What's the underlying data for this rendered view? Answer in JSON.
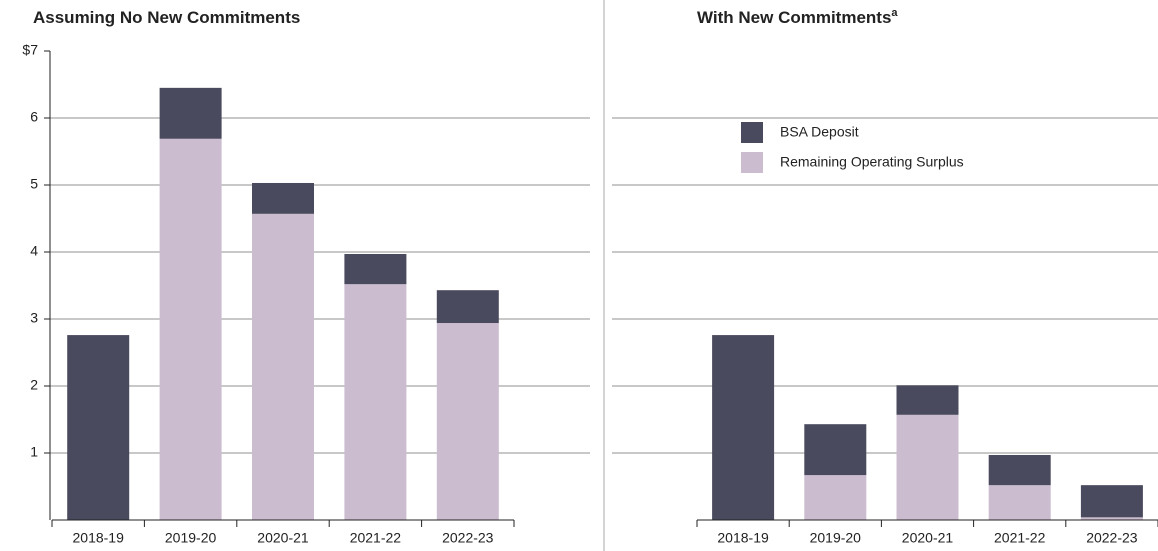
{
  "chart_data": [
    {
      "type": "stacked_bar",
      "title": "Assuming No New Commitments",
      "categories": [
        "2018-19",
        "2019-20",
        "2020-21",
        "2021-22",
        "2022-23"
      ],
      "series": [
        {
          "name": "Remaining Operating Surplus",
          "color": "#cbbccf",
          "values": [
            0,
            5.69,
            4.57,
            3.52,
            2.94
          ]
        },
        {
          "name": "BSA Deposit",
          "color": "#4a4a5e",
          "values": [
            2.76,
            0.76,
            0.46,
            0.45,
            0.49
          ]
        }
      ],
      "ylim": [
        0,
        7
      ],
      "yticks": [
        1,
        2,
        3,
        4,
        5,
        6,
        {
          "value": 7,
          "label": "$7"
        }
      ],
      "grid": true
    },
    {
      "type": "stacked_bar",
      "title": "With New Commitments",
      "title_note": "a",
      "categories": [
        "2018-19",
        "2019-20",
        "2020-21",
        "2021-22",
        "2022-23"
      ],
      "series": [
        {
          "name": "Remaining Operating Surplus",
          "color": "#cbbccf",
          "values": [
            0,
            0.67,
            1.57,
            0.52,
            0.04
          ]
        },
        {
          "name": "BSA Deposit",
          "color": "#4a4a5e",
          "values": [
            2.76,
            0.76,
            0.44,
            0.45,
            0.48
          ]
        }
      ],
      "ylim": [
        0,
        7
      ],
      "yticks": [
        1,
        2,
        3,
        4,
        5,
        6
      ],
      "grid": true,
      "legend": "top-left"
    }
  ]
}
